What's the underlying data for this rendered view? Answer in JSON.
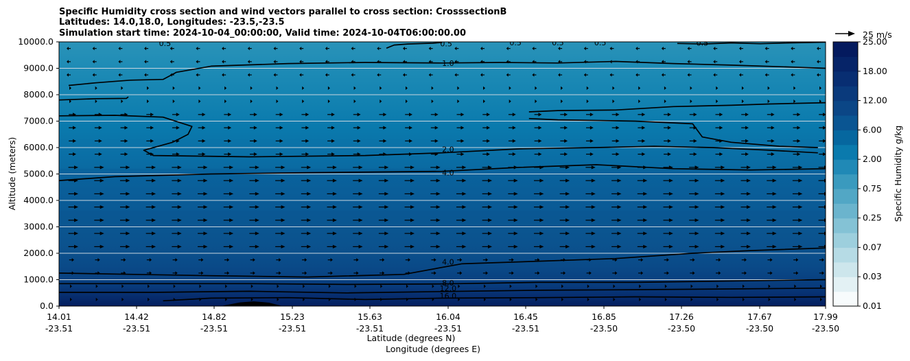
{
  "chart_data": {
    "type": "heatmap",
    "title_lines": [
      "Specific Humidity cross section and wind vectors parallel to cross section: CrosssectionB",
      "Latitudes: 14.0,18.0, Longitudes: -23.5,-23.5",
      "Simulation start time: 2024-10-04_00:00:00, Valid time: 2024-10-04T06:00:00.00"
    ],
    "ylabel": "Altitude (meters)",
    "xlabel_lat": "Latitude (degrees N)",
    "xlabel_lon": "Longitude (degrees E)",
    "ylim": [
      0,
      10000
    ],
    "y_ticks": [
      "0.0",
      "1000.0",
      "2000.0",
      "3000.0",
      "4000.0",
      "5000.0",
      "6000.0",
      "7000.0",
      "8000.0",
      "9000.0",
      "10000.0"
    ],
    "y_tick_values": [
      0,
      1000,
      2000,
      3000,
      4000,
      5000,
      6000,
      7000,
      8000,
      9000,
      10000
    ],
    "grid": "horizontal",
    "x_ticks": [
      {
        "lat": "14.01",
        "lon": "-23.51"
      },
      {
        "lat": "14.42",
        "lon": "-23.51"
      },
      {
        "lat": "14.82",
        "lon": "-23.51"
      },
      {
        "lat": "15.23",
        "lon": "-23.51"
      },
      {
        "lat": "15.63",
        "lon": "-23.51"
      },
      {
        "lat": "16.04",
        "lon": "-23.51"
      },
      {
        "lat": "16.45",
        "lon": "-23.51"
      },
      {
        "lat": "16.85",
        "lon": "-23.50"
      },
      {
        "lat": "17.26",
        "lon": "-23.50"
      },
      {
        "lat": "17.67",
        "lon": "-23.50"
      },
      {
        "lat": "17.99",
        "lon": "-23.50"
      }
    ],
    "x_range": [
      14.01,
      17.99
    ],
    "colorbar": {
      "label": "Specific Humidity g/kg",
      "tick_labels": [
        "0.01",
        "0.03",
        "0.07",
        "0.25",
        "0.75",
        "2.00",
        "6.00",
        "12.00",
        "18.00",
        "25.00"
      ],
      "levels": [
        "0.01",
        "0.02",
        "0.03",
        "0.05",
        "0.07",
        "0.1",
        "0.25",
        "0.5",
        "0.75",
        "1",
        "2",
        "3",
        "6",
        "9",
        "12",
        "15",
        "18",
        "21",
        "25"
      ],
      "colors": [
        "#f7fbfc",
        "#e3f1f4",
        "#cde6ec",
        "#b6dbe5",
        "#9dcfdd",
        "#84c2d5",
        "#6bb4cd",
        "#52a7c5",
        "#3a9abe",
        "#2089b6",
        "#0a7aad",
        "#06679f",
        "#0a5592",
        "#0b4686",
        "#0a3a7c",
        "#082e72",
        "#062468",
        "#041a5e"
      ]
    },
    "quiver_key": "25 m/s",
    "contour_labels": [
      {
        "text": "0.5",
        "x": 14.56,
        "y": 9950
      },
      {
        "text": "0.5",
        "x": 16.02,
        "y": 9930
      },
      {
        "text": "0.5",
        "x": 16.38,
        "y": 9980
      },
      {
        "text": "0.5",
        "x": 16.6,
        "y": 9980
      },
      {
        "text": "0.5",
        "x": 16.82,
        "y": 9980
      },
      {
        "text": "0.5",
        "x": 17.35,
        "y": 9960
      },
      {
        "text": "1.0",
        "x": 16.03,
        "y": 9200
      },
      {
        "text": "2.0",
        "x": 16.03,
        "y": 5940
      },
      {
        "text": "4.0",
        "x": 16.03,
        "y": 5050
      },
      {
        "text": "4.0",
        "x": 16.03,
        "y": 1680
      },
      {
        "text": "8.0",
        "x": 16.03,
        "y": 880
      },
      {
        "text": "12.0",
        "x": 16.03,
        "y": 680
      },
      {
        "text": "16.0",
        "x": 16.03,
        "y": 390
      }
    ],
    "contours": [
      {
        "level": "0.5",
        "points": [
          [
            15.71,
            9760
          ],
          [
            15.75,
            9880
          ],
          [
            15.82,
            9920
          ],
          [
            15.95,
            9950
          ],
          [
            16.0,
            9980
          ]
        ]
      },
      {
        "level": "0.5",
        "points": [
          [
            17.22,
            9940
          ],
          [
            17.35,
            9920
          ],
          [
            17.5,
            9960
          ],
          [
            17.65,
            9930
          ],
          [
            17.8,
            9960
          ],
          [
            17.99,
            9990
          ]
        ]
      },
      {
        "level": "1.0",
        "points": [
          [
            14.06,
            8350
          ],
          [
            14.2,
            8450
          ],
          [
            14.38,
            8550
          ],
          [
            14.55,
            8580
          ],
          [
            14.62,
            8850
          ],
          [
            14.8,
            9080
          ],
          [
            15.2,
            9180
          ],
          [
            15.6,
            9220
          ],
          [
            16.0,
            9200
          ],
          [
            16.3,
            9220
          ],
          [
            16.6,
            9200
          ],
          [
            16.9,
            9260
          ],
          [
            17.2,
            9180
          ],
          [
            17.5,
            9120
          ],
          [
            17.8,
            9050
          ],
          [
            17.99,
            9000
          ]
        ]
      },
      {
        "level": "1.0",
        "points": [
          [
            14.01,
            7800
          ],
          [
            14.2,
            7850
          ],
          [
            14.36,
            7860
          ],
          [
            14.37,
            7920
          ]
        ]
      },
      {
        "level": "1.0",
        "points": [
          [
            16.45,
            7350
          ],
          [
            16.6,
            7400
          ],
          [
            16.9,
            7420
          ],
          [
            17.2,
            7550
          ],
          [
            17.5,
            7600
          ],
          [
            17.7,
            7650
          ],
          [
            17.99,
            7700
          ]
        ]
      },
      {
        "level": "2.0",
        "points": [
          [
            14.01,
            7200
          ],
          [
            14.3,
            7220
          ],
          [
            14.55,
            7150
          ],
          [
            14.7,
            6800
          ],
          [
            14.68,
            6500
          ],
          [
            14.6,
            6200
          ],
          [
            14.45,
            5900
          ],
          [
            14.5,
            5700
          ],
          [
            15.0,
            5650
          ],
          [
            15.6,
            5700
          ],
          [
            16.0,
            5800
          ],
          [
            16.4,
            5950
          ],
          [
            16.8,
            6000
          ],
          [
            17.1,
            6050
          ],
          [
            17.4,
            6000
          ],
          [
            17.7,
            5900
          ],
          [
            17.95,
            5800
          ]
        ]
      },
      {
        "level": "2.0",
        "points": [
          [
            16.45,
            7100
          ],
          [
            16.6,
            7050
          ],
          [
            17.0,
            7000
          ],
          [
            17.3,
            6900
          ],
          [
            17.35,
            6400
          ],
          [
            17.5,
            6200
          ],
          [
            17.75,
            6050
          ],
          [
            17.95,
            6000
          ]
        ]
      },
      {
        "level": "4.0",
        "points": [
          [
            14.01,
            4750
          ],
          [
            14.3,
            4900
          ],
          [
            14.8,
            5000
          ],
          [
            15.3,
            5050
          ],
          [
            16.0,
            5100
          ],
          [
            16.4,
            5250
          ],
          [
            16.8,
            5350
          ],
          [
            17.2,
            5200
          ],
          [
            17.6,
            5150
          ],
          [
            17.99,
            5200
          ]
        ]
      },
      {
        "level": "4.0",
        "points": [
          [
            14.01,
            1250
          ],
          [
            14.4,
            1200
          ],
          [
            14.8,
            1150
          ],
          [
            15.3,
            1100
          ],
          [
            15.8,
            1200
          ],
          [
            16.1,
            1600
          ],
          [
            16.5,
            1700
          ],
          [
            16.9,
            1800
          ],
          [
            17.3,
            2000
          ],
          [
            17.6,
            2100
          ],
          [
            17.99,
            2200
          ]
        ]
      },
      {
        "level": "8.0",
        "points": [
          [
            14.01,
            850
          ],
          [
            14.5,
            850
          ],
          [
            15.0,
            850
          ],
          [
            15.5,
            820
          ],
          [
            16.0,
            840
          ],
          [
            16.5,
            900
          ],
          [
            17.0,
            900
          ],
          [
            17.5,
            950
          ],
          [
            17.99,
            1000
          ]
        ]
      },
      {
        "level": "12.0",
        "points": [
          [
            14.01,
            520
          ],
          [
            14.5,
            520
          ],
          [
            15.0,
            560
          ],
          [
            15.5,
            500
          ],
          [
            16.0,
            550
          ],
          [
            16.5,
            600
          ],
          [
            17.0,
            620
          ],
          [
            17.5,
            650
          ],
          [
            17.99,
            680
          ]
        ]
      },
      {
        "level": "16.0",
        "points": [
          [
            14.55,
            200
          ],
          [
            14.8,
            300
          ],
          [
            15.2,
            320
          ],
          [
            15.6,
            250
          ],
          [
            16.0,
            300
          ],
          [
            16.5,
            320
          ],
          [
            17.0,
            350
          ],
          [
            17.5,
            330
          ],
          [
            17.99,
            350
          ]
        ]
      }
    ],
    "terrain": [
      [
        14.85,
        0
      ],
      [
        14.95,
        140
      ],
      [
        15.02,
        180
      ],
      [
        15.1,
        130
      ],
      [
        15.17,
        0
      ]
    ]
  }
}
